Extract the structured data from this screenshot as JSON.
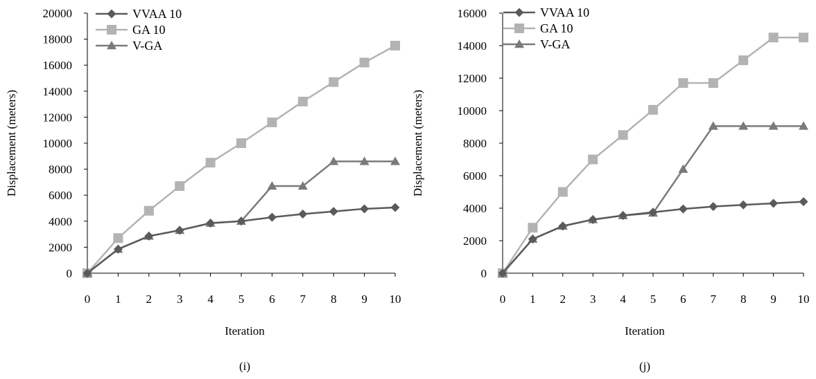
{
  "chart_data": [
    {
      "type": "line",
      "caption": "(i)",
      "xlabel": "Iteration",
      "ylabel": "Displacement (meters)",
      "x": [
        0,
        1,
        2,
        3,
        4,
        5,
        6,
        7,
        8,
        9,
        10
      ],
      "x_ticks": [
        "0",
        "1",
        "2",
        "3",
        "4",
        "5",
        "6",
        "7",
        "8",
        "9",
        "10"
      ],
      "y_ticks": [
        "0",
        "2000",
        "4000",
        "6000",
        "8000",
        "10000",
        "12000",
        "14000",
        "16000",
        "18000",
        "20000"
      ],
      "ylim": [
        0,
        20000
      ],
      "grid": false,
      "legend_position": "top-left",
      "series": [
        {
          "name": "VVAA 10",
          "marker": "diamond",
          "color": "#5a5a5a",
          "values": [
            0,
            1850,
            2850,
            3300,
            3850,
            4000,
            4300,
            4550,
            4750,
            4950,
            5050
          ]
        },
        {
          "name": "GA 10",
          "marker": "square",
          "color": "#b3b3b3",
          "values": [
            0,
            2700,
            4800,
            6700,
            8500,
            10000,
            11600,
            13200,
            14700,
            16200,
            17500
          ]
        },
        {
          "name": "V-GA",
          "marker": "triangle",
          "color": "#7a7a7a",
          "values": [
            0,
            1850,
            2850,
            3300,
            3850,
            4000,
            6700,
            6700,
            8600,
            8600,
            8600
          ]
        }
      ]
    },
    {
      "type": "line",
      "caption": "(j)",
      "xlabel": "Iteration",
      "ylabel": "Displacement (meters)",
      "x": [
        0,
        1,
        2,
        3,
        4,
        5,
        6,
        7,
        8,
        9,
        10
      ],
      "x_ticks": [
        "0",
        "1",
        "2",
        "3",
        "4",
        "5",
        "6",
        "7",
        "8",
        "9",
        "10"
      ],
      "y_ticks": [
        "0",
        "2000",
        "4000",
        "6000",
        "8000",
        "10000",
        "12000",
        "14000",
        "16000"
      ],
      "ylim": [
        0,
        16000
      ],
      "grid": false,
      "legend_position": "top-left",
      "series": [
        {
          "name": "VVAA 10",
          "marker": "diamond",
          "color": "#5a5a5a",
          "values": [
            0,
            2100,
            2900,
            3300,
            3550,
            3750,
            3950,
            4100,
            4200,
            4300,
            4400
          ]
        },
        {
          "name": "GA 10",
          "marker": "square",
          "color": "#b3b3b3",
          "values": [
            0,
            2800,
            5000,
            7000,
            8500,
            10050,
            11700,
            11700,
            13100,
            14500,
            14500
          ]
        },
        {
          "name": "V-GA",
          "marker": "triangle",
          "color": "#7a7a7a",
          "values": [
            0,
            2100,
            2900,
            3300,
            3550,
            3700,
            6400,
            9050,
            9050,
            9050,
            9050
          ]
        }
      ]
    }
  ]
}
